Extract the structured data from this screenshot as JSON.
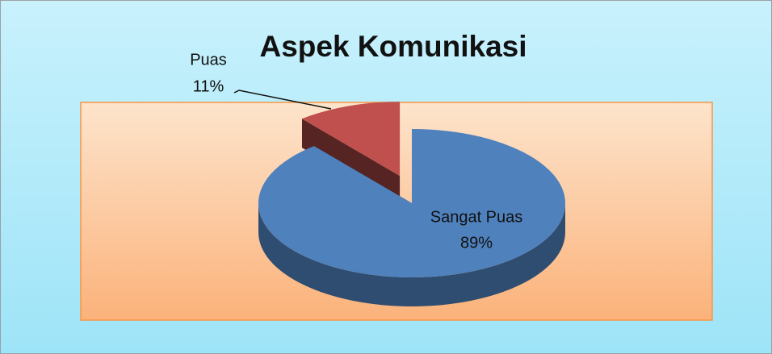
{
  "chart_data": {
    "type": "pie",
    "title": "Aspek Komunikasi",
    "categories": [
      "Sangat Puas",
      "Puas"
    ],
    "values": [
      89,
      11
    ],
    "value_labels": [
      "89%",
      "11%"
    ],
    "colors": [
      "#4f81bd",
      "#c0504d"
    ]
  }
}
